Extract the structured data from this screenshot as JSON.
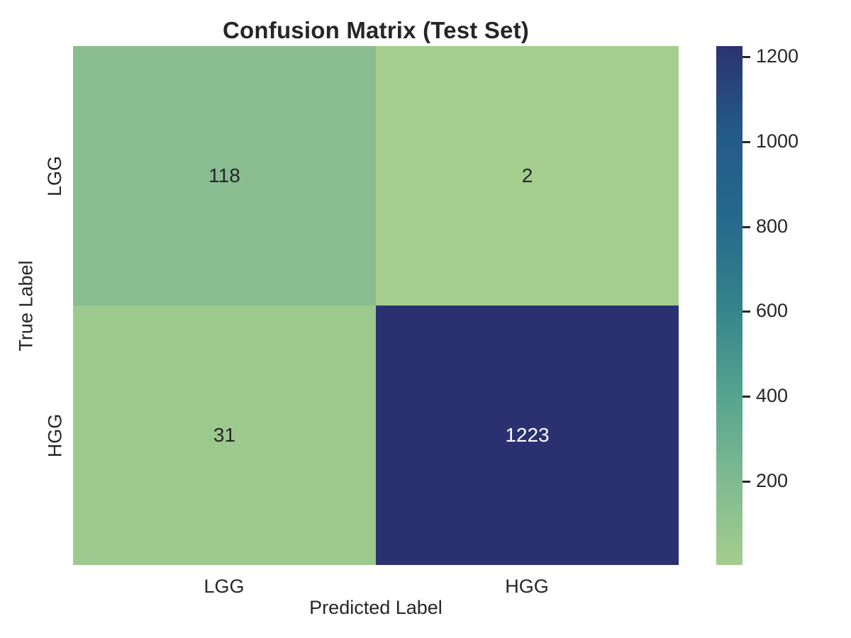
{
  "chart_data": {
    "type": "heatmap",
    "title": "Confusion Matrix (Test Set)",
    "xlabel": "Predicted Label",
    "ylabel": "True Label",
    "x_categories": [
      "LGG",
      "HGG"
    ],
    "y_categories": [
      "LGG",
      "HGG"
    ],
    "matrix": [
      [
        118,
        2
      ],
      [
        31,
        1223
      ]
    ],
    "vmin": 2,
    "vmax": 1223,
    "colormap": "crest",
    "grid": false,
    "legend_position": "colorbar-right",
    "cells": [
      {
        "true_label": "LGG",
        "predicted_label": "LGG",
        "value": "118",
        "color": "#89bd90",
        "text_color": "#262626"
      },
      {
        "true_label": "LGG",
        "predicted_label": "HGG",
        "value": "2",
        "color": "#a4cd8e",
        "text_color": "#262626"
      },
      {
        "true_label": "HGG",
        "predicted_label": "LGG",
        "value": "31",
        "color": "#9cc98d",
        "text_color": "#262626"
      },
      {
        "true_label": "HGG",
        "predicted_label": "HGG",
        "value": "1223",
        "color": "#2b3170",
        "text_color": "#ffffff"
      }
    ],
    "colorbar": {
      "tick_labels": [
        "1200",
        "1000",
        "800",
        "600",
        "400",
        "200"
      ],
      "gradient_stops_bottom_to_top": [
        "#a5cd8e",
        "#7eba90",
        "#54a28f",
        "#33838b",
        "#26698c",
        "#235a88",
        "#2c336e"
      ]
    },
    "colors": {
      "background": "#ffffff",
      "text": "#262626",
      "annotation_light": "#ffffff",
      "cmap_low": "#a5cd8e",
      "cmap_high": "#2c336e"
    }
  }
}
